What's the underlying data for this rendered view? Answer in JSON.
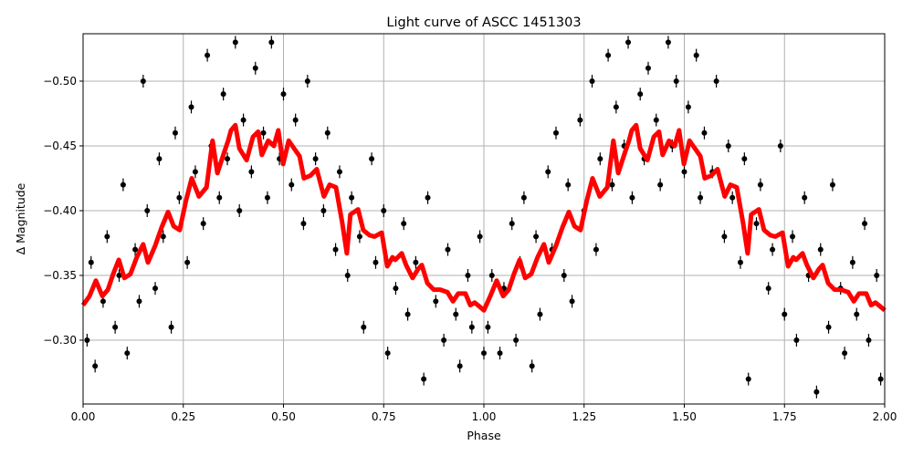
{
  "chart_data": {
    "type": "scatter",
    "title": "Light curve of ASCC 1451303",
    "xlabel": "Phase",
    "ylabel": "Δ Magnitude",
    "xlim": [
      0,
      2
    ],
    "ylim": [
      -0.2507,
      -0.5366
    ],
    "y_inverted": true,
    "grid": true,
    "xticks": [
      "0.00",
      "0.25",
      "0.50",
      "0.75",
      "1.00",
      "1.25",
      "1.50",
      "1.75",
      "2.00"
    ],
    "xtick_values": [
      0,
      0.25,
      0.5,
      0.75,
      1,
      1.25,
      1.5,
      1.75,
      2
    ],
    "yticks": [
      "−0.50",
      "−0.45",
      "−0.40",
      "−0.35",
      "−0.30"
    ],
    "ytick_values": [
      -0.5,
      -0.45,
      -0.4,
      -0.35,
      -0.3
    ],
    "colors": {
      "points": "#000000",
      "model": "#ff0000",
      "grid": "#b0b0b0"
    },
    "points": [
      [
        0.01,
        -0.3
      ],
      [
        0.02,
        -0.36
      ],
      [
        0.03,
        -0.28
      ],
      [
        0.05,
        -0.33
      ],
      [
        0.06,
        -0.38
      ],
      [
        0.08,
        -0.31
      ],
      [
        0.09,
        -0.35
      ],
      [
        0.1,
        -0.42
      ],
      [
        0.11,
        -0.29
      ],
      [
        0.13,
        -0.37
      ],
      [
        0.14,
        -0.33
      ],
      [
        0.15,
        -0.5
      ],
      [
        0.16,
        -0.4
      ],
      [
        0.18,
        -0.34
      ],
      [
        0.19,
        -0.44
      ],
      [
        0.2,
        -0.38
      ],
      [
        0.22,
        -0.31
      ],
      [
        0.23,
        -0.46
      ],
      [
        0.24,
        -0.41
      ],
      [
        0.26,
        -0.36
      ],
      [
        0.27,
        -0.48
      ],
      [
        0.28,
        -0.43
      ],
      [
        0.3,
        -0.39
      ],
      [
        0.31,
        -0.52
      ],
      [
        0.32,
        -0.45
      ],
      [
        0.34,
        -0.41
      ],
      [
        0.35,
        -0.49
      ],
      [
        0.36,
        -0.44
      ],
      [
        0.38,
        -0.53
      ],
      [
        0.39,
        -0.4
      ],
      [
        0.4,
        -0.47
      ],
      [
        0.42,
        -0.43
      ],
      [
        0.43,
        -0.51
      ],
      [
        0.45,
        -0.46
      ],
      [
        0.46,
        -0.41
      ],
      [
        0.47,
        -0.53
      ],
      [
        0.49,
        -0.44
      ],
      [
        0.5,
        -0.49
      ],
      [
        0.52,
        -0.42
      ],
      [
        0.53,
        -0.47
      ],
      [
        0.55,
        -0.39
      ],
      [
        0.56,
        -0.5
      ],
      [
        0.58,
        -0.44
      ],
      [
        0.6,
        -0.4
      ],
      [
        0.61,
        -0.46
      ],
      [
        0.63,
        -0.37
      ],
      [
        0.64,
        -0.43
      ],
      [
        0.66,
        -0.35
      ],
      [
        0.67,
        -0.41
      ],
      [
        0.69,
        -0.38
      ],
      [
        0.7,
        -0.31
      ],
      [
        0.72,
        -0.44
      ],
      [
        0.73,
        -0.36
      ],
      [
        0.75,
        -0.4
      ],
      [
        0.76,
        -0.29
      ],
      [
        0.78,
        -0.34
      ],
      [
        0.8,
        -0.39
      ],
      [
        0.81,
        -0.32
      ],
      [
        0.83,
        -0.36
      ],
      [
        0.85,
        -0.27
      ],
      [
        0.86,
        -0.41
      ],
      [
        0.88,
        -0.33
      ],
      [
        0.9,
        -0.3
      ],
      [
        0.91,
        -0.37
      ],
      [
        0.93,
        -0.32
      ],
      [
        0.94,
        -0.28
      ],
      [
        0.96,
        -0.35
      ],
      [
        0.97,
        -0.31
      ],
      [
        0.99,
        -0.38
      ],
      [
        1.0,
        -0.29
      ],
      [
        1.01,
        -0.31
      ],
      [
        1.02,
        -0.35
      ],
      [
        1.04,
        -0.29
      ],
      [
        1.05,
        -0.34
      ],
      [
        1.07,
        -0.39
      ],
      [
        1.08,
        -0.3
      ],
      [
        1.09,
        -0.36
      ],
      [
        1.1,
        -0.41
      ],
      [
        1.12,
        -0.28
      ],
      [
        1.13,
        -0.38
      ],
      [
        1.14,
        -0.32
      ],
      [
        1.16,
        -0.43
      ],
      [
        1.17,
        -0.37
      ],
      [
        1.18,
        -0.46
      ],
      [
        1.2,
        -0.35
      ],
      [
        1.21,
        -0.42
      ],
      [
        1.22,
        -0.33
      ],
      [
        1.24,
        -0.47
      ],
      [
        1.25,
        -0.4
      ],
      [
        1.27,
        -0.5
      ],
      [
        1.28,
        -0.37
      ],
      [
        1.29,
        -0.44
      ],
      [
        1.31,
        -0.52
      ],
      [
        1.32,
        -0.42
      ],
      [
        1.33,
        -0.48
      ],
      [
        1.35,
        -0.45
      ],
      [
        1.36,
        -0.53
      ],
      [
        1.37,
        -0.41
      ],
      [
        1.39,
        -0.49
      ],
      [
        1.4,
        -0.44
      ],
      [
        1.41,
        -0.51
      ],
      [
        1.43,
        -0.47
      ],
      [
        1.44,
        -0.42
      ],
      [
        1.46,
        -0.53
      ],
      [
        1.47,
        -0.45
      ],
      [
        1.48,
        -0.5
      ],
      [
        1.5,
        -0.43
      ],
      [
        1.51,
        -0.48
      ],
      [
        1.53,
        -0.52
      ],
      [
        1.54,
        -0.41
      ],
      [
        1.55,
        -0.46
      ],
      [
        1.57,
        -0.43
      ],
      [
        1.58,
        -0.5
      ],
      [
        1.6,
        -0.38
      ],
      [
        1.61,
        -0.45
      ],
      [
        1.62,
        -0.41
      ],
      [
        1.64,
        -0.36
      ],
      [
        1.65,
        -0.44
      ],
      [
        1.66,
        -0.27
      ],
      [
        1.68,
        -0.39
      ],
      [
        1.69,
        -0.42
      ],
      [
        1.71,
        -0.34
      ],
      [
        1.72,
        -0.37
      ],
      [
        1.74,
        -0.45
      ],
      [
        1.75,
        -0.32
      ],
      [
        1.77,
        -0.38
      ],
      [
        1.78,
        -0.3
      ],
      [
        1.8,
        -0.41
      ],
      [
        1.81,
        -0.35
      ],
      [
        1.83,
        -0.26
      ],
      [
        1.84,
        -0.37
      ],
      [
        1.86,
        -0.31
      ],
      [
        1.87,
        -0.42
      ],
      [
        1.89,
        -0.34
      ],
      [
        1.9,
        -0.29
      ],
      [
        1.92,
        -0.36
      ],
      [
        1.93,
        -0.32
      ],
      [
        1.95,
        -0.39
      ],
      [
        1.96,
        -0.3
      ],
      [
        1.98,
        -0.35
      ],
      [
        1.99,
        -0.27
      ]
    ],
    "model": {
      "x": [
        0,
        0.016,
        0.032,
        0.048,
        0.062,
        0.075,
        0.089,
        0.103,
        0.118,
        0.134,
        0.15,
        0.162,
        0.18,
        0.196,
        0.212,
        0.226,
        0.241,
        0.257,
        0.271,
        0.289,
        0.308,
        0.323,
        0.335,
        0.353,
        0.362,
        0.369,
        0.38,
        0.39,
        0.408,
        0.424,
        0.437,
        0.446,
        0.462,
        0.476,
        0.487,
        0.499,
        0.513,
        0.522,
        0.54,
        0.551,
        0.567,
        0.583,
        0.601,
        0.615,
        0.631,
        0.647,
        0.658,
        0.667,
        0.686,
        0.699,
        0.715,
        0.727,
        0.745,
        0.759,
        0.772,
        0.779,
        0.795,
        0.806,
        0.822,
        0.836,
        0.845,
        0.859,
        0.875,
        0.891,
        0.909,
        0.923,
        0.936,
        0.954,
        0.966,
        0.977,
        0.993,
        1.0,
        1.016,
        1.032,
        1.048,
        1.062,
        1.075,
        1.089,
        1.103,
        1.118,
        1.134,
        1.15,
        1.162,
        1.18,
        1.196,
        1.212,
        1.226,
        1.241,
        1.257,
        1.271,
        1.289,
        1.308,
        1.323,
        1.335,
        1.353,
        1.362,
        1.369,
        1.38,
        1.39,
        1.408,
        1.424,
        1.437,
        1.446,
        1.462,
        1.476,
        1.487,
        1.499,
        1.513,
        1.522,
        1.54,
        1.551,
        1.567,
        1.583,
        1.601,
        1.615,
        1.631,
        1.647,
        1.658,
        1.667,
        1.686,
        1.699,
        1.715,
        1.727,
        1.745,
        1.759,
        1.772,
        1.779,
        1.795,
        1.806,
        1.822,
        1.836,
        1.845,
        1.859,
        1.875,
        1.891,
        1.909,
        1.923,
        1.936,
        1.954,
        1.966,
        1.977,
        1.993,
        2.0
      ],
      "y": [
        -0.327,
        -0.334,
        -0.346,
        -0.334,
        -0.339,
        -0.351,
        -0.362,
        -0.348,
        -0.351,
        -0.364,
        -0.374,
        -0.36,
        -0.373,
        -0.387,
        -0.399,
        -0.388,
        -0.385,
        -0.408,
        -0.425,
        -0.411,
        -0.418,
        -0.454,
        -0.429,
        -0.446,
        -0.454,
        -0.462,
        -0.466,
        -0.448,
        -0.439,
        -0.457,
        -0.461,
        -0.443,
        -0.454,
        -0.45,
        -0.462,
        -0.436,
        -0.454,
        -0.45,
        -0.442,
        -0.425,
        -0.427,
        -0.432,
        -0.411,
        -0.42,
        -0.418,
        -0.39,
        -0.367,
        -0.397,
        -0.401,
        -0.385,
        -0.381,
        -0.38,
        -0.383,
        -0.357,
        -0.364,
        -0.362,
        -0.367,
        -0.358,
        -0.348,
        -0.355,
        -0.358,
        -0.344,
        -0.339,
        -0.339,
        -0.337,
        -0.33,
        -0.336,
        -0.336,
        -0.327,
        -0.329,
        -0.325,
        -0.323,
        -0.334,
        -0.346,
        -0.334,
        -0.339,
        -0.351,
        -0.362,
        -0.348,
        -0.351,
        -0.364,
        -0.374,
        -0.36,
        -0.373,
        -0.387,
        -0.399,
        -0.388,
        -0.385,
        -0.408,
        -0.425,
        -0.411,
        -0.418,
        -0.454,
        -0.429,
        -0.446,
        -0.454,
        -0.462,
        -0.466,
        -0.448,
        -0.439,
        -0.457,
        -0.461,
        -0.443,
        -0.454,
        -0.45,
        -0.462,
        -0.436,
        -0.454,
        -0.45,
        -0.442,
        -0.425,
        -0.427,
        -0.432,
        -0.411,
        -0.42,
        -0.418,
        -0.39,
        -0.367,
        -0.397,
        -0.401,
        -0.385,
        -0.381,
        -0.38,
        -0.383,
        -0.357,
        -0.364,
        -0.362,
        -0.367,
        -0.358,
        -0.348,
        -0.355,
        -0.358,
        -0.344,
        -0.339,
        -0.339,
        -0.337,
        -0.33,
        -0.336,
        -0.336,
        -0.327,
        -0.329,
        -0.325,
        -0.323
      ]
    }
  }
}
